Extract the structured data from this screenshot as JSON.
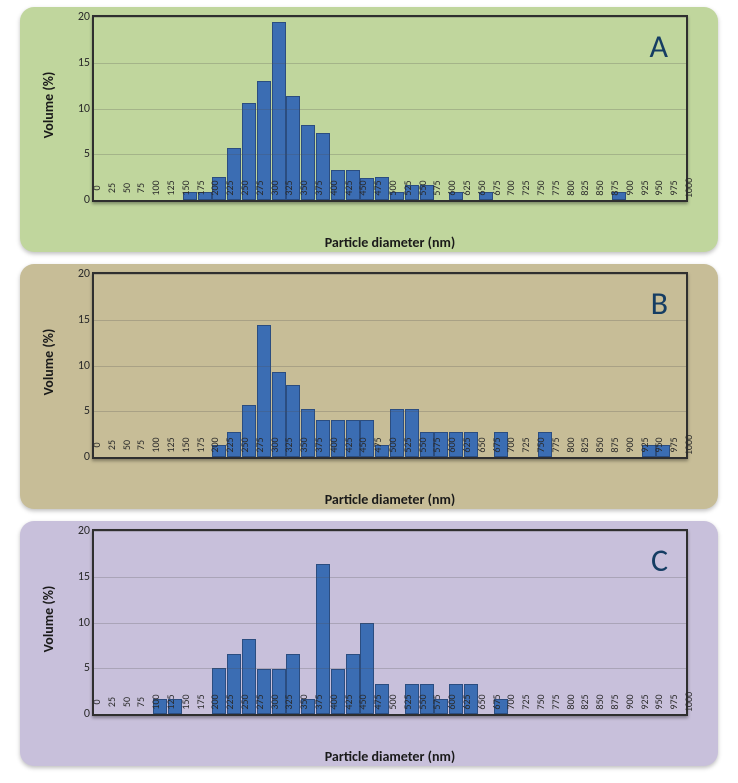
{
  "layout": {
    "panel_count": 3,
    "panel_bg_colors": [
      "#c0d69d",
      "#c7bd97",
      "#c8c0db"
    ],
    "panel_letters": [
      "A",
      "B",
      "C"
    ],
    "panel_letter_color": "#153d63",
    "panel_letter_fontsize": 32
  },
  "axes": {
    "ylabel": "Volume (%)",
    "xlabel": "Particle diameter (nm)",
    "label_fontsize": 14,
    "tick_fontsize": 12,
    "xtick_fontsize": 10
  },
  "charts": [
    {
      "type": "bar",
      "letter": "A",
      "bg_color": "#c0d69d",
      "bar_color": "#3b6db3",
      "bar_border": "#2b4d80",
      "xlim": [
        0,
        1000
      ],
      "xtick_step": 25,
      "ylim": [
        0,
        20
      ],
      "ytick_step": 5,
      "xticks": [
        0,
        25,
        50,
        75,
        100,
        125,
        150,
        175,
        200,
        225,
        250,
        275,
        300,
        325,
        350,
        375,
        400,
        425,
        450,
        475,
        500,
        525,
        550,
        575,
        600,
        625,
        650,
        675,
        700,
        725,
        750,
        775,
        800,
        825,
        850,
        875,
        900,
        925,
        950,
        975,
        1000
      ],
      "categories": [
        0,
        25,
        50,
        75,
        100,
        125,
        150,
        175,
        200,
        225,
        250,
        275,
        300,
        325,
        350,
        375,
        400,
        425,
        450,
        475,
        500,
        525,
        550,
        575,
        600,
        625,
        650,
        675,
        700,
        725,
        750,
        775,
        800,
        825,
        850,
        875,
        900,
        925,
        950,
        975
      ],
      "values": [
        0,
        0,
        0,
        0,
        0,
        0,
        0.9,
        0.9,
        2.5,
        5.7,
        10.6,
        13.0,
        19.5,
        11.4,
        8.2,
        7.3,
        3.3,
        3.3,
        2.4,
        2.5,
        0.9,
        1.6,
        1.6,
        0,
        0.9,
        0,
        0.9,
        0,
        0,
        0,
        0,
        0,
        0,
        0,
        0,
        0.9,
        0,
        0,
        0,
        0
      ]
    },
    {
      "type": "bar",
      "letter": "B",
      "bg_color": "#c7bd97",
      "bar_color": "#3b6db3",
      "bar_border": "#2b4d80",
      "xlim": [
        0,
        1000
      ],
      "xtick_step": 25,
      "ylim": [
        0,
        20
      ],
      "ytick_step": 5,
      "xticks": [
        0,
        25,
        50,
        75,
        100,
        125,
        150,
        175,
        200,
        225,
        250,
        275,
        300,
        325,
        350,
        375,
        400,
        425,
        450,
        475,
        500,
        525,
        550,
        575,
        600,
        625,
        650,
        675,
        700,
        725,
        750,
        775,
        800,
        825,
        850,
        875,
        900,
        925,
        950,
        975,
        1000
      ],
      "categories": [
        0,
        25,
        50,
        75,
        100,
        125,
        150,
        175,
        200,
        225,
        250,
        275,
        300,
        325,
        350,
        375,
        400,
        425,
        450,
        475,
        500,
        525,
        550,
        575,
        600,
        625,
        650,
        675,
        700,
        725,
        750,
        775,
        800,
        825,
        850,
        875,
        900,
        925,
        950,
        975
      ],
      "values": [
        0,
        0,
        0,
        0,
        0,
        0,
        0,
        0,
        1.3,
        2.7,
        5.7,
        14.4,
        9.3,
        7.9,
        5.3,
        4.0,
        4.0,
        4.0,
        4.0,
        1.3,
        5.3,
        5.3,
        2.7,
        2.7,
        2.7,
        2.7,
        0,
        2.7,
        0,
        0,
        2.7,
        0,
        0,
        0,
        0,
        0,
        0,
        1.3,
        1.3,
        0
      ]
    },
    {
      "type": "bar",
      "letter": "C",
      "bg_color": "#c8c0db",
      "bar_color": "#3b6db3",
      "bar_border": "#2b4d80",
      "xlim": [
        0,
        1000
      ],
      "xtick_step": 25,
      "ylim": [
        0,
        20
      ],
      "ytick_step": 5,
      "xticks": [
        0,
        25,
        50,
        75,
        100,
        125,
        150,
        175,
        200,
        225,
        250,
        275,
        300,
        325,
        350,
        375,
        400,
        425,
        450,
        475,
        500,
        525,
        550,
        575,
        600,
        625,
        650,
        675,
        700,
        725,
        750,
        775,
        800,
        825,
        850,
        875,
        900,
        925,
        950,
        975,
        1000
      ],
      "categories": [
        0,
        25,
        50,
        75,
        100,
        125,
        150,
        175,
        200,
        225,
        250,
        275,
        300,
        325,
        350,
        375,
        400,
        425,
        450,
        475,
        500,
        525,
        550,
        575,
        600,
        625,
        650,
        675,
        700,
        725,
        750,
        775,
        800,
        825,
        850,
        875,
        900,
        925,
        950,
        975
      ],
      "values": [
        0,
        0,
        0,
        0,
        1.6,
        1.6,
        0,
        0,
        5.0,
        6.6,
        8.2,
        4.9,
        4.9,
        6.6,
        1.6,
        16.4,
        4.9,
        6.6,
        9.9,
        3.3,
        0,
        3.3,
        3.3,
        1.6,
        3.3,
        3.3,
        0,
        1.6,
        0,
        0,
        0,
        0,
        0,
        0,
        0,
        0,
        0,
        0,
        0,
        0
      ]
    }
  ]
}
